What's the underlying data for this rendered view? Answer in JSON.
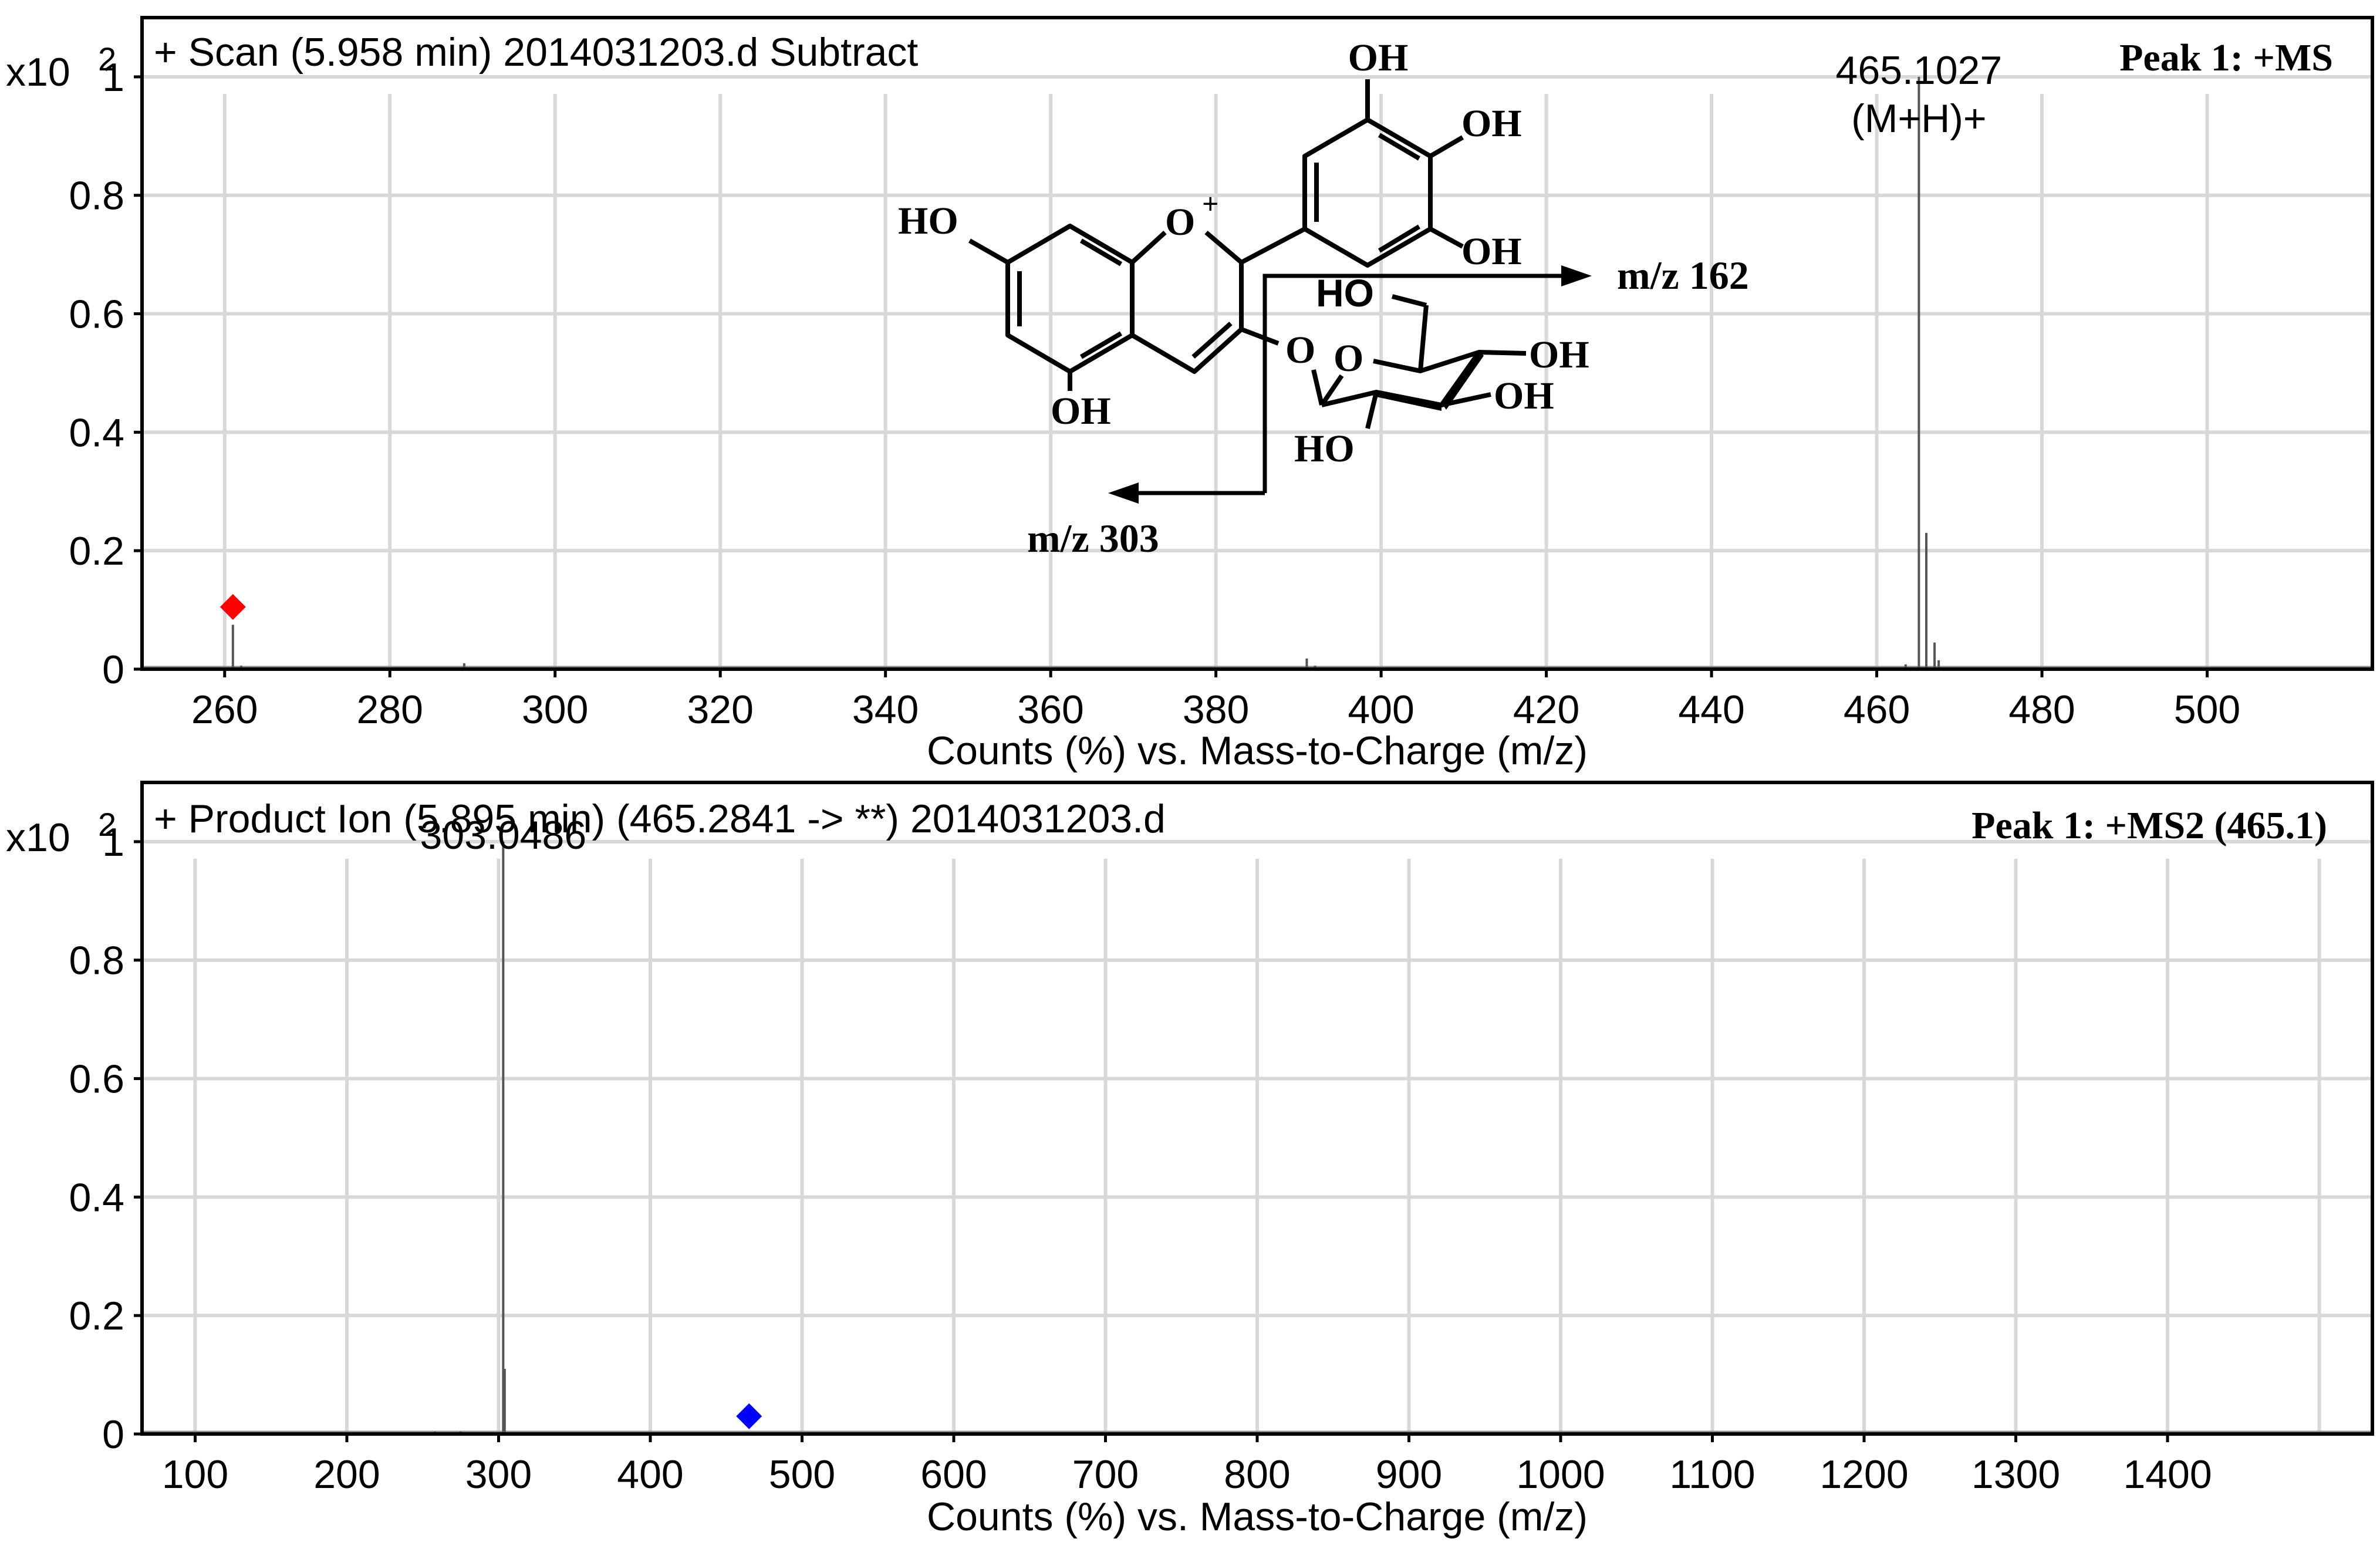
{
  "axis_multiplier": {
    "prefix": "x10",
    "exponent": "2"
  },
  "chart_data": [
    {
      "type": "bar",
      "title": "+ Scan (5.958 min) 2014031203.d  Subtract",
      "peak_label": "Peak 1: +MS",
      "xlabel": "Counts (%) vs. Mass-to-Charge (m/z)",
      "ylabel": "",
      "xlim": [
        250,
        520
      ],
      "ylim": [
        0,
        1.1
      ],
      "x_ticks": [
        260,
        280,
        300,
        320,
        340,
        360,
        380,
        400,
        420,
        440,
        460,
        480,
        500
      ],
      "y_ticks": [
        0,
        0.2,
        0.4,
        0.6,
        0.8,
        1
      ],
      "y_tick_labels": [
        "0",
        "0.2",
        "0.4",
        "0.6",
        "0.8",
        "1"
      ],
      "grid": true,
      "bar_color": "#555555",
      "peaks": [
        {
          "x": 261.0,
          "y": 0.075
        },
        {
          "x": 262.0,
          "y": 0.006
        },
        {
          "x": 289.0,
          "y": 0.01
        },
        {
          "x": 391.0,
          "y": 0.018
        },
        {
          "x": 392.0,
          "y": 0.006
        },
        {
          "x": 463.5,
          "y": 0.008
        },
        {
          "x": 465.1027,
          "y": 1.0
        },
        {
          "x": 466.0,
          "y": 0.23
        },
        {
          "x": 467.0,
          "y": 0.045
        },
        {
          "x": 467.5,
          "y": 0.015
        }
      ],
      "annotations": [
        {
          "x": 465.1027,
          "y": 1.0,
          "lines": [
            "465.1027",
            "(M+H)+"
          ]
        }
      ],
      "precursor_marker": {
        "x": 261.0,
        "y": 0.105,
        "color": "#ff0000"
      }
    },
    {
      "type": "bar",
      "title": "+ Product Ion (5.895 min) (465.2841 -> **) 2014031203.d",
      "peak_label": "Peak 1: +MS2 (465.1)",
      "xlabel": "Counts (%) vs. Mass-to-Charge (m/z)",
      "ylabel": "",
      "xlim": [
        65,
        1535
      ],
      "ylim": [
        0,
        1.1
      ],
      "x_ticks": [
        100,
        200,
        300,
        400,
        500,
        600,
        700,
        800,
        900,
        1000,
        1100,
        1200,
        1300,
        1400
      ],
      "minor_grid_x": [
        1500
      ],
      "y_ticks": [
        0,
        0.2,
        0.4,
        0.6,
        0.8,
        1
      ],
      "y_tick_labels": [
        "0",
        "0.2",
        "0.4",
        "0.6",
        "0.8",
        "1"
      ],
      "grid": true,
      "bar_color": "#555555",
      "peaks": [
        {
          "x": 258.0,
          "y": 0.004
        },
        {
          "x": 275.0,
          "y": 0.004
        },
        {
          "x": 303.0486,
          "y": 1.0
        },
        {
          "x": 304.0,
          "y": 0.11
        }
      ],
      "annotations": [
        {
          "x": 303.0486,
          "y": 1.0,
          "lines": [
            "303.0486"
          ]
        }
      ],
      "precursor_marker": {
        "x": 465.1,
        "y": 0.03,
        "color": "#0000ff"
      }
    }
  ],
  "structure": {
    "labels": {
      "oh_top": "OH",
      "oh_right1": "OH",
      "oh_right2": "OH",
      "ho_left": "HO",
      "oxonium_o": "O",
      "oxonium_plus": "+",
      "oh_bottom": "OH",
      "ring_o_link": "O",
      "sugar_ring_o": "O",
      "sugar_ho_top": "HO",
      "sugar_oh_right1": "OH",
      "sugar_oh_right2": "OH",
      "sugar_ho_bottom": "HO"
    },
    "fragment_162": "m/z 162",
    "fragment_303": "m/z 303"
  }
}
